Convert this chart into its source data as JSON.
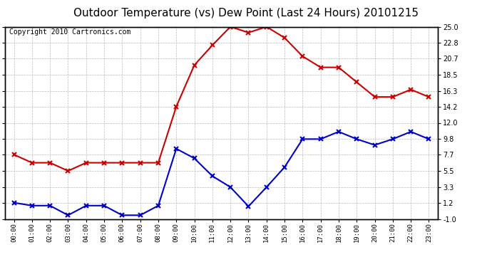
{
  "title": "Outdoor Temperature (vs) Dew Point (Last 24 Hours) 20101215",
  "copyright": "Copyright 2010 Cartronics.com",
  "hours": [
    "00:00",
    "01:00",
    "02:00",
    "03:00",
    "04:00",
    "05:00",
    "06:00",
    "07:00",
    "08:00",
    "09:00",
    "10:00",
    "11:00",
    "12:00",
    "13:00",
    "14:00",
    "15:00",
    "16:00",
    "17:00",
    "18:00",
    "19:00",
    "20:00",
    "21:00",
    "22:00",
    "23:00"
  ],
  "temp_red": [
    7.7,
    6.6,
    6.6,
    5.5,
    6.6,
    6.6,
    6.6,
    6.6,
    6.6,
    14.2,
    19.8,
    22.5,
    25.0,
    24.2,
    25.0,
    23.5,
    21.0,
    19.5,
    19.5,
    17.5,
    15.5,
    15.5,
    16.5,
    15.5
  ],
  "temp_blue": [
    1.2,
    0.8,
    0.8,
    -0.5,
    0.8,
    0.8,
    -0.5,
    -0.5,
    0.8,
    8.5,
    7.2,
    4.8,
    3.3,
    0.7,
    3.3,
    6.0,
    9.8,
    9.8,
    10.8,
    9.8,
    9.0,
    9.8,
    10.8,
    9.8
  ],
  "yticks": [
    -1.0,
    1.2,
    3.3,
    5.5,
    7.7,
    9.8,
    12.0,
    14.2,
    16.3,
    18.5,
    20.7,
    22.8,
    25.0
  ],
  "ylim": [
    -1.0,
    25.0
  ],
  "background_color": "#ffffff",
  "plot_bg_color": "#ffffff",
  "grid_color": "#bbbbbb",
  "red_color": "#cc0000",
  "blue_color": "#0000cc",
  "title_fontsize": 11,
  "copyright_fontsize": 7
}
